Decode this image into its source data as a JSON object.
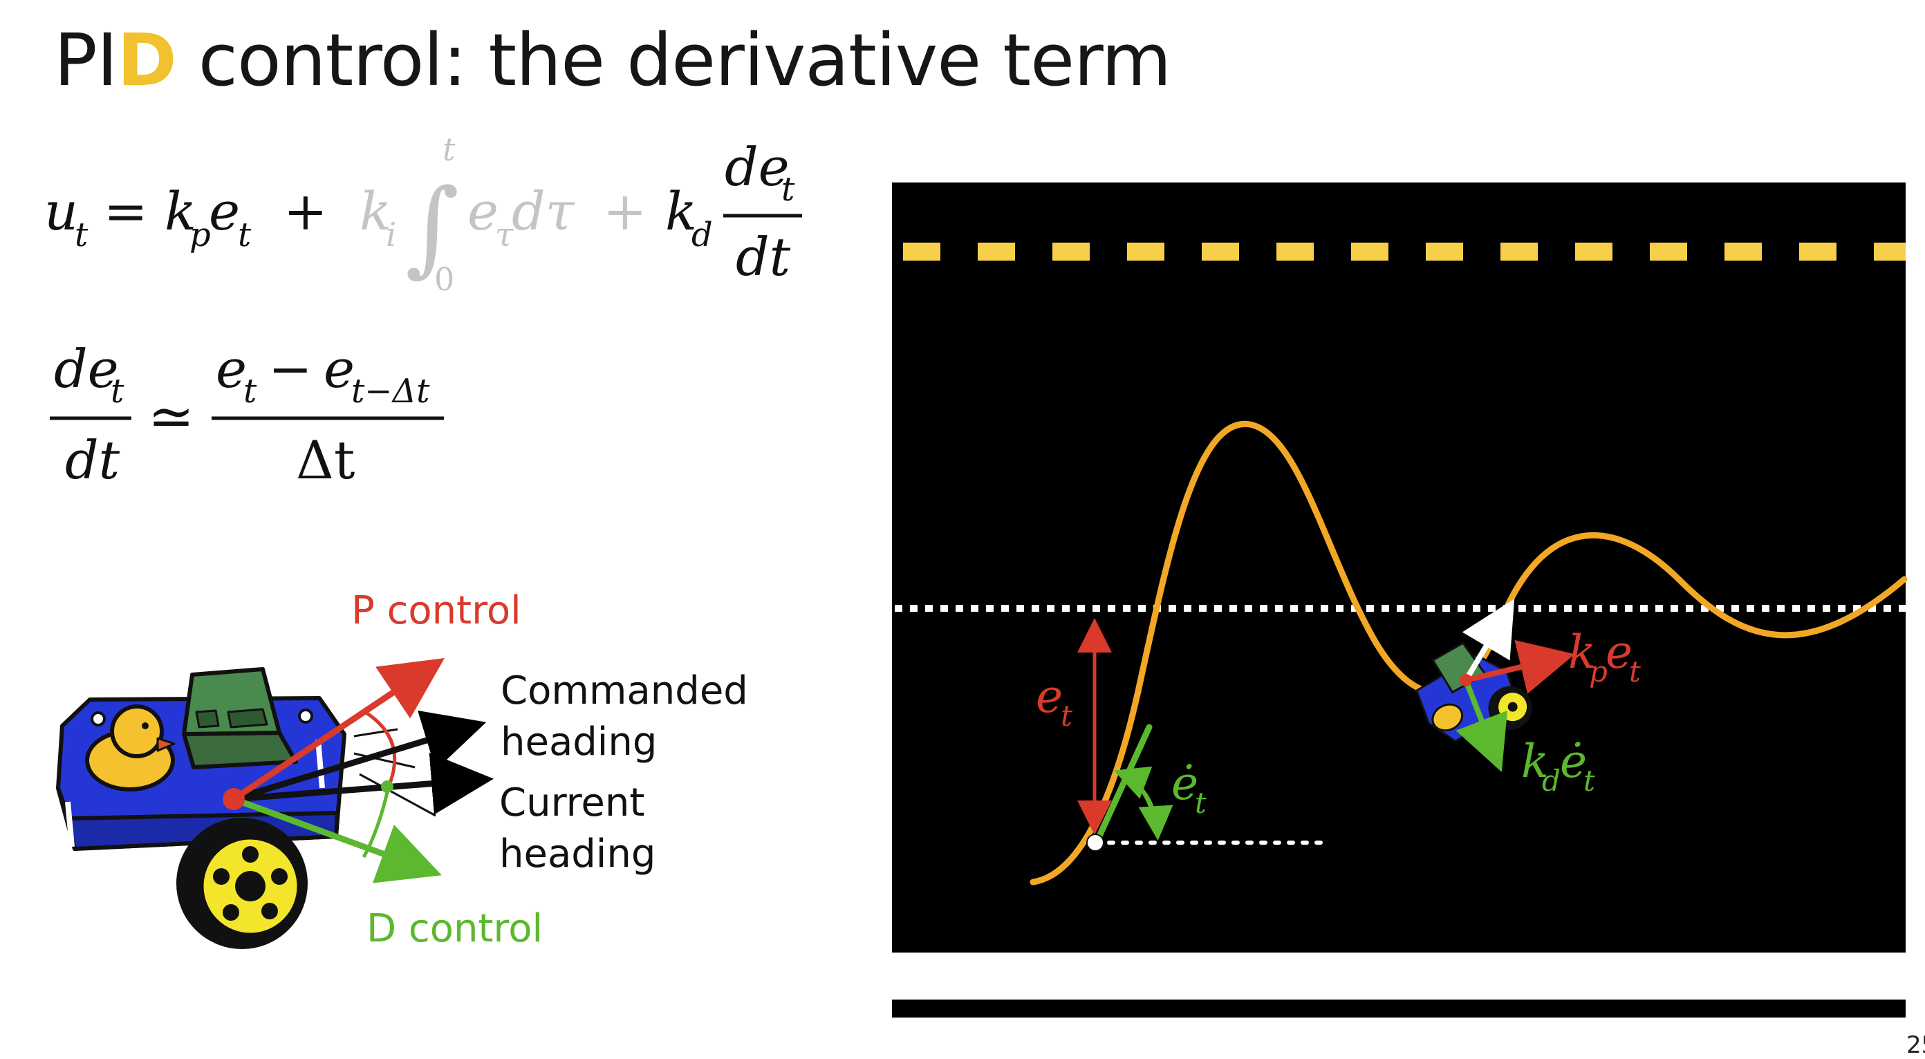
{
  "slide": {
    "title_prefix": "PI",
    "title_highlight": "D",
    "title_rest": " control: the derivative term",
    "page_number": "25"
  },
  "equations": {
    "control_law": {
      "lhs": "u",
      "lhs_sub": "t",
      "equals": "=",
      "p_coef": "k",
      "p_coef_sub": "p",
      "p_err": "e",
      "p_err_sub": "t",
      "plus": "+",
      "i_coef": "k",
      "i_coef_sub": "i",
      "integral": "∫",
      "int_upper": "t",
      "int_lower": "0",
      "i_err": "e",
      "i_err_sub": "τ",
      "i_d": "dτ",
      "d_coef": "k",
      "d_coef_sub": "d",
      "d_num": "de",
      "d_num_sub": "t",
      "d_den": "dt"
    },
    "approximation": {
      "lhs_num": "de",
      "lhs_num_sub": "t",
      "lhs_den": "dt",
      "approx": "≃",
      "rhs_num_a": "e",
      "rhs_num_a_sub": "t",
      "minus": "−",
      "rhs_num_b": "e",
      "rhs_num_b_sub": "t−Δt",
      "rhs_den": "Δt"
    }
  },
  "left_diagram": {
    "p_control_label": "P control",
    "commanded_heading_line1": "Commanded",
    "commanded_heading_line2": "heading",
    "current_heading_line1": "Current",
    "current_heading_line2": "heading",
    "d_control_label": "D control"
  },
  "right_diagram": {
    "error_label": "e",
    "error_sub": "t",
    "error_rate_label": "ė",
    "error_rate_sub": "t",
    "kp_label": "k",
    "kp_sub": "p",
    "kp_err": "e",
    "kp_err_sub": "t",
    "kd_label": "k",
    "kd_sub": "d",
    "kd_err": "ė",
    "kd_err_sub": "t"
  },
  "colors": {
    "p_control": "#d93a2b",
    "d_control": "#5cb82e",
    "lane_yellow": "#f7d04a",
    "trajectory": "#f3a825",
    "road": "#000000",
    "robot_body": "#2437d6",
    "robot_board": "#3b6b3f",
    "duck": "#f5c12e",
    "greyed_term": "#c4c4c4"
  }
}
